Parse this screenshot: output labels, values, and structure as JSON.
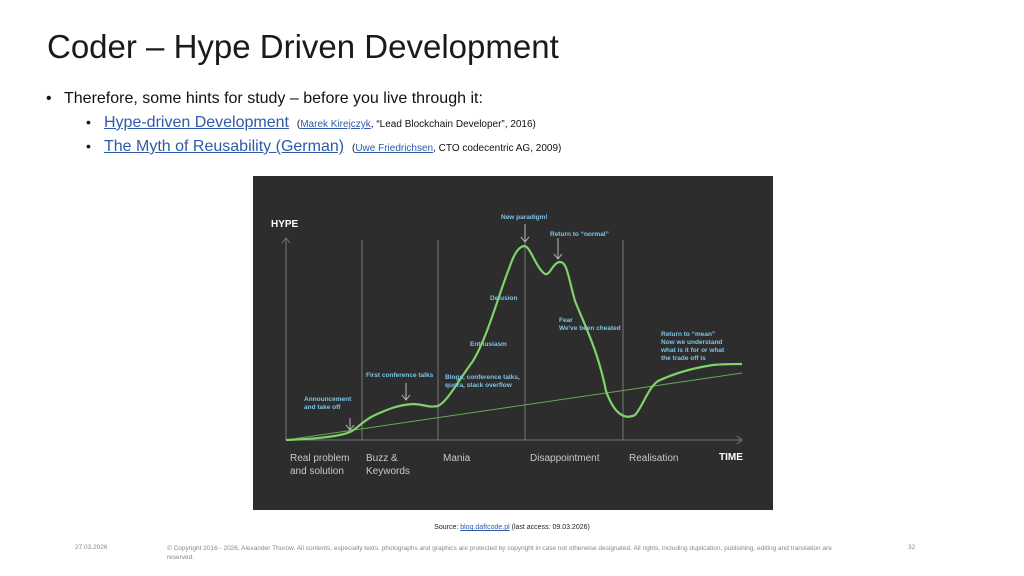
{
  "slide": {
    "title": "Coder – Hype Driven Development",
    "bullet": "Therefore, some hints for study – before you live through it:",
    "refs": [
      {
        "link": "Hype-driven Development",
        "open": "(",
        "author": "Marek Kirejczyk",
        "rest": ", “Lead Blockchain Developer”, 2016)"
      },
      {
        "link": "The Myth of Reusability (German)",
        "open": "(",
        "author": "Uwe Friedrichsen",
        "rest": ", CTO codecentric AG, 2009)"
      }
    ]
  },
  "diagram": {
    "y_axis": "HYPE",
    "x_axis": "TIME",
    "phases": [
      "Real problem\nand solution",
      "Buzz &\nKeywords",
      "Mania",
      "Disappointment",
      "Realisation"
    ],
    "annotations": {
      "announcement": "Announcement\nand take off",
      "first_talks": "First conference talks",
      "blogs": "Blogs, conference talks,\nquora, stack overflow",
      "enthusiasm": "Enthusiasm",
      "delusion": "Delusion",
      "new_paradigm": "New paradigm!",
      "return_normal": "Return to “normal”",
      "fear": "Fear\nWe've been cheated",
      "return_mean": "Return to “mean”\nNow we understand\nwhat is it for or what\nthe trade off is"
    },
    "colors": {
      "background": "#2d2d2d",
      "curve": "#7ed36a",
      "labels": "#7fc4e6"
    }
  },
  "source": {
    "prefix": "Source: ",
    "link": "blog.daftcode.pl",
    "suffix": " (last access: 09.03.2026)"
  },
  "footer": {
    "date": "27.03.2026",
    "copyright": "© Copyright 2016 - 2026, Alexander Thurow. All contents, especially texts, photographs and graphics are protected by copyright in case not otherwise designated. All rights, including duplication, publishing, editing and translation are reserved.",
    "page": "32"
  }
}
